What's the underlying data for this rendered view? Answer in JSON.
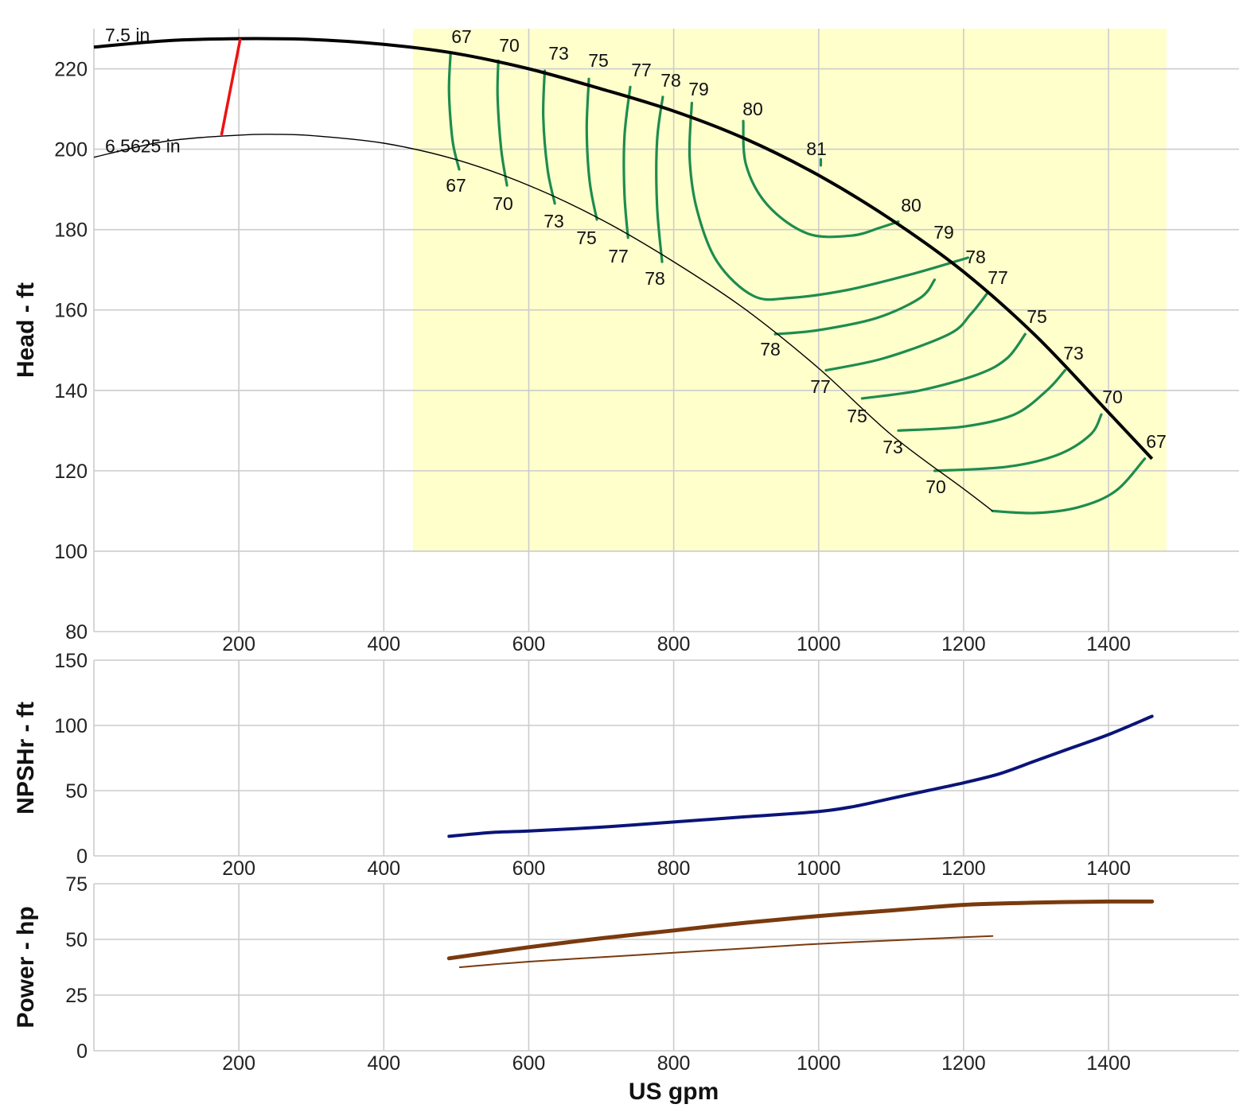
{
  "chart_data": [
    {
      "type": "line",
      "name": "head-panel",
      "ylabel": "Head - ft",
      "xlim": [
        0,
        1580
      ],
      "ylim": [
        80,
        230
      ],
      "x_ticks": [
        200,
        400,
        600,
        800,
        1000,
        1200,
        1400
      ],
      "y_ticks": [
        80,
        100,
        120,
        140,
        160,
        180,
        200,
        220
      ],
      "grid": true,
      "shaded_region": {
        "x": [
          440,
          1480
        ],
        "y": [
          100,
          230
        ],
        "color": "#ffffcc"
      },
      "colors": {
        "max_curve": "#000000",
        "min_curve": "#000000",
        "efficiency": "#1e8c4e",
        "min_flow": "#ee1111"
      },
      "impeller_curves": [
        {
          "label": "7.5 in",
          "points": [
            [
              0,
              225.4
            ],
            [
              100,
              227.0
            ],
            [
              200,
              227.5
            ],
            [
              300,
              227.3
            ],
            [
              400,
              226.1
            ],
            [
              500,
              223.8
            ],
            [
              600,
              220.0
            ],
            [
              700,
              215.0
            ],
            [
              800,
              209.5
            ],
            [
              900,
              202.5
            ],
            [
              1000,
              193.5
            ],
            [
              1100,
              182.5
            ],
            [
              1200,
              169.5
            ],
            [
              1300,
              153.5
            ],
            [
              1400,
              134.5
            ],
            [
              1460,
              123.0
            ]
          ]
        },
        {
          "label": "6.5625 in",
          "points": [
            [
              0,
              198.0
            ],
            [
              100,
              202.0
            ],
            [
              200,
              203.5
            ],
            [
              250,
              203.7
            ],
            [
              300,
              203.4
            ],
            [
              400,
              201.5
            ],
            [
              500,
              197.4
            ],
            [
              600,
              191.0
            ],
            [
              700,
              182.5
            ],
            [
              800,
              172.0
            ],
            [
              900,
              160.0
            ],
            [
              1000,
              145.5
            ],
            [
              1100,
              129.0
            ],
            [
              1200,
              115.5
            ],
            [
              1240,
              110.0
            ]
          ]
        }
      ],
      "min_flow_line": [
        [
          176,
          203.5
        ],
        [
          202,
          227.5
        ]
      ],
      "efficiency_labels_top": [
        "67",
        "70",
        "73",
        "75",
        "77",
        "78",
        "79",
        "80",
        "81"
      ],
      "efficiency_labels_bottom": [
        "67",
        "70",
        "73",
        "75",
        "77",
        "78"
      ],
      "efficiency_labels_right": [
        "80",
        "79",
        "78",
        "77",
        "75",
        "73",
        "70",
        "67"
      ],
      "efficiency_labels_lower": [
        "78",
        "77",
        "75",
        "73",
        "70"
      ],
      "efficiency_contours": [
        {
          "label": "67",
          "points": [
            [
              492,
              223.5
            ],
            [
              490,
              214
            ],
            [
              495,
              202
            ],
            [
              504,
              195
            ]
          ]
        },
        {
          "label": "70",
          "points": [
            [
              558,
              222
            ],
            [
              557,
              213
            ],
            [
              562,
              200
            ],
            [
              570,
              191
            ]
          ]
        },
        {
          "label": "73",
          "points": [
            [
              622,
              219.5
            ],
            [
              620,
              208
            ],
            [
              626,
              195
            ],
            [
              636,
              186.5
            ]
          ]
        },
        {
          "label": "75",
          "points": [
            [
              683,
              217.5
            ],
            [
              680,
              205
            ],
            [
              684,
              192
            ],
            [
              694,
              182.5
            ]
          ]
        },
        {
          "label": "77",
          "points": [
            [
              740,
              215.5
            ],
            [
              732,
              203
            ],
            [
              732,
              189
            ],
            [
              737,
              178
            ]
          ]
        },
        {
          "label": "78",
          "points": [
            [
              785,
              213
            ],
            [
              777,
              202
            ],
            [
              777,
              186
            ],
            [
              784,
              172
            ]
          ]
        },
        {
          "label": "79",
          "points": [
            [
              825,
              211.5
            ],
            [
              822,
              198
            ],
            [
              832,
              185
            ],
            [
              860,
              172
            ],
            [
              910,
              163.5
            ],
            [
              960,
              163
            ],
            [
              1040,
              165
            ],
            [
              1130,
              169
            ],
            [
              1206,
              173
            ]
          ]
        },
        {
          "label": "80",
          "points": [
            [
              896,
              207
            ],
            [
              900,
              196
            ],
            [
              930,
              186
            ],
            [
              985,
              179
            ],
            [
              1045,
              178.5
            ],
            [
              1085,
              180.5
            ],
            [
              1110,
              182
            ]
          ]
        },
        {
          "label": "81",
          "points": [
            [
              1003,
              196
            ],
            [
              1003,
              197.5
            ]
          ]
        },
        {
          "label": "79r",
          "points": [
            [
              940,
              154
            ],
            [
              1000,
              155
            ],
            [
              1080,
              158
            ],
            [
              1140,
              163
            ],
            [
              1160,
              167.5
            ]
          ]
        },
        {
          "label": "77r",
          "points": [
            [
              1010,
              145
            ],
            [
              1090,
              148
            ],
            [
              1180,
              154
            ],
            [
              1210,
              159
            ],
            [
              1232,
              164
            ]
          ]
        },
        {
          "label": "75r",
          "points": [
            [
              1060,
              138
            ],
            [
              1140,
              140
            ],
            [
              1220,
              144
            ],
            [
              1260,
              148
            ],
            [
              1285,
              154
            ]
          ]
        },
        {
          "label": "73r",
          "points": [
            [
              1110,
              130
            ],
            [
              1200,
              131
            ],
            [
              1270,
              134
            ],
            [
              1315,
              140
            ],
            [
              1340,
              145
            ]
          ]
        },
        {
          "label": "70r",
          "points": [
            [
              1160,
              120
            ],
            [
              1260,
              121
            ],
            [
              1330,
              124
            ],
            [
              1375,
              129
            ],
            [
              1390,
              134
            ]
          ]
        },
        {
          "label": "67r",
          "points": [
            [
              1240,
              110
            ],
            [
              1300,
              109.5
            ],
            [
              1360,
              111
            ],
            [
              1410,
              115
            ],
            [
              1450,
              123
            ]
          ]
        }
      ]
    },
    {
      "type": "line",
      "name": "npshr-panel",
      "ylabel": "NPSHr - ft",
      "xlim": [
        0,
        1580
      ],
      "ylim": [
        0,
        150
      ],
      "x_ticks": [
        200,
        400,
        600,
        800,
        1000,
        1200,
        1400
      ],
      "y_ticks": [
        0,
        50,
        100,
        150
      ],
      "grid": true,
      "series": [
        {
          "color": "#0a1478",
          "x": [
            490,
            550,
            600,
            700,
            800,
            900,
            1000,
            1050,
            1100,
            1150,
            1200,
            1250,
            1300,
            1350,
            1400,
            1460
          ],
          "values": [
            15,
            18,
            19,
            22,
            26,
            30,
            34,
            38,
            44,
            50,
            56,
            63,
            73,
            83,
            93,
            107
          ]
        }
      ]
    },
    {
      "type": "line",
      "name": "power-panel",
      "ylabel": "Power - hp",
      "xlabel": "US gpm",
      "xlim": [
        0,
        1580
      ],
      "ylim": [
        0,
        75
      ],
      "x_ticks": [
        200,
        400,
        600,
        800,
        1000,
        1200,
        1400
      ],
      "y_ticks": [
        0,
        25,
        50,
        75
      ],
      "grid": true,
      "series": [
        {
          "color": "#7a3a0e",
          "width": 5,
          "x": [
            490,
            600,
            700,
            800,
            900,
            1000,
            1100,
            1200,
            1300,
            1400,
            1460
          ],
          "values": [
            41.5,
            46.5,
            50.5,
            54,
            57.5,
            60.5,
            63,
            65.5,
            66.5,
            67,
            67
          ]
        },
        {
          "color": "#7a3a0e",
          "width": 2,
          "x": [
            505,
            600,
            700,
            800,
            900,
            1000,
            1100,
            1200,
            1240
          ],
          "values": [
            37.5,
            40,
            42,
            44,
            46,
            48,
            49.5,
            51,
            51.5
          ]
        }
      ]
    }
  ]
}
